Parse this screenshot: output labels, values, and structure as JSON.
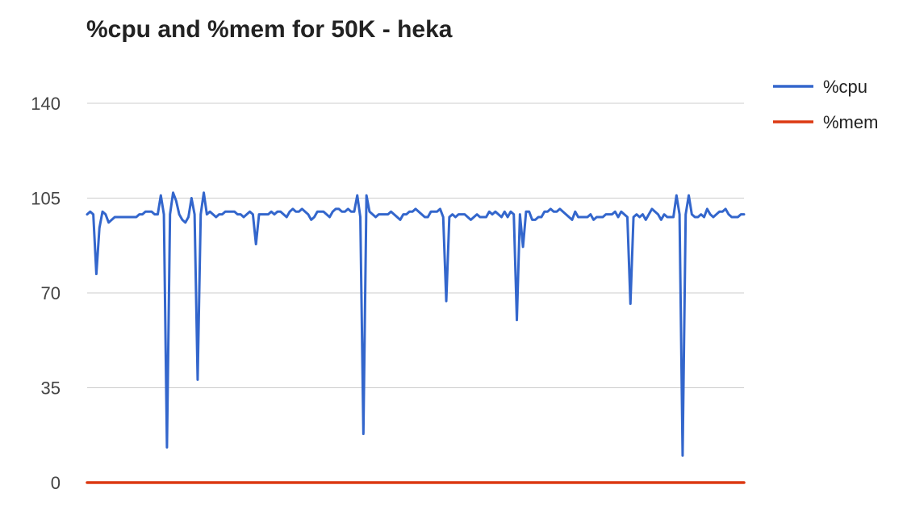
{
  "chart_data": {
    "type": "line",
    "title": "%cpu and %mem for 50K - heka",
    "xlabel": "",
    "ylabel": "",
    "ylim": [
      0,
      140
    ],
    "yticks": [
      "0",
      "35",
      "70",
      "105",
      "140"
    ],
    "grid": true,
    "legend": "top-right",
    "series": [
      {
        "name": "%cpu",
        "color": "#3366cc",
        "values": [
          99,
          100,
          99,
          77,
          94,
          100,
          99,
          96,
          97,
          98,
          98,
          98,
          98,
          98,
          98,
          98,
          98,
          99,
          99,
          100,
          100,
          100,
          99,
          99,
          106,
          99,
          13,
          99,
          107,
          104,
          99,
          97,
          96,
          98,
          105,
          99,
          38,
          99,
          107,
          99,
          100,
          99,
          98,
          99,
          99,
          100,
          100,
          100,
          100,
          99,
          99,
          98,
          99,
          100,
          99,
          88,
          99,
          99,
          99,
          99,
          100,
          99,
          100,
          100,
          99,
          98,
          100,
          101,
          100,
          100,
          101,
          100,
          99,
          97,
          98,
          100,
          100,
          100,
          99,
          98,
          100,
          101,
          101,
          100,
          100,
          101,
          100,
          100,
          106,
          98,
          18,
          106,
          100,
          99,
          98,
          99,
          99,
          99,
          99,
          100,
          99,
          98,
          97,
          99,
          99,
          100,
          100,
          101,
          100,
          99,
          98,
          98,
          100,
          100,
          100,
          101,
          98,
          67,
          98,
          99,
          98,
          99,
          99,
          99,
          98,
          97,
          98,
          99,
          98,
          98,
          98,
          100,
          99,
          100,
          99,
          98,
          100,
          98,
          100,
          99,
          60,
          99,
          87,
          100,
          100,
          97,
          97,
          98,
          98,
          100,
          100,
          101,
          100,
          100,
          101,
          100,
          99,
          98,
          97,
          100,
          98,
          98,
          98,
          98,
          99,
          97,
          98,
          98,
          98,
          99,
          99,
          99,
          100,
          98,
          100,
          99,
          98,
          66,
          98,
          99,
          98,
          99,
          97,
          99,
          101,
          100,
          99,
          97,
          99,
          98,
          98,
          98,
          106,
          99,
          10,
          99,
          106,
          99,
          98,
          98,
          99,
          98,
          101,
          99,
          98,
          99,
          100,
          100,
          101,
          99,
          98,
          98,
          98,
          99,
          99
        ]
      },
      {
        "name": "%mem",
        "color": "#dc3912",
        "values": [
          0,
          0,
          0,
          0,
          0,
          0,
          0,
          0,
          0,
          0,
          0,
          0,
          0,
          0,
          0,
          0,
          0,
          0,
          0,
          0,
          0,
          0,
          0,
          0,
          0,
          0,
          0,
          0,
          0,
          0,
          0,
          0,
          0,
          0,
          0,
          0,
          0,
          0,
          0,
          0,
          0,
          0,
          0,
          0,
          0,
          0,
          0,
          0,
          0,
          0,
          0,
          0,
          0,
          0,
          0,
          0,
          0,
          0,
          0,
          0,
          0,
          0,
          0,
          0,
          0,
          0,
          0,
          0,
          0,
          0,
          0,
          0,
          0,
          0,
          0,
          0,
          0,
          0,
          0,
          0,
          0,
          0,
          0,
          0,
          0,
          0,
          0,
          0,
          0,
          0,
          0,
          0,
          0,
          0,
          0,
          0,
          0,
          0,
          0,
          0,
          0,
          0,
          0,
          0,
          0,
          0,
          0,
          0,
          0,
          0,
          0,
          0,
          0,
          0,
          0,
          0,
          0,
          0,
          0,
          0,
          0,
          0,
          0,
          0,
          0,
          0,
          0,
          0,
          0,
          0,
          0,
          0,
          0,
          0,
          0,
          0,
          0,
          0,
          0,
          0,
          0,
          0,
          0,
          0,
          0,
          0,
          0,
          0,
          0,
          0,
          0,
          0,
          0,
          0,
          0,
          0,
          0,
          0,
          0,
          0,
          0,
          0,
          0,
          0,
          0,
          0,
          0,
          0,
          0,
          0,
          0,
          0,
          0,
          0,
          0,
          0,
          0,
          0,
          0,
          0,
          0,
          0,
          0,
          0,
          0,
          0,
          0,
          0,
          0,
          0,
          0,
          0,
          0,
          0,
          0,
          0,
          0,
          0,
          0,
          0,
          0,
          0,
          0,
          0,
          0,
          0,
          0,
          0,
          0,
          0,
          0,
          0,
          0,
          0,
          0,
          0,
          0,
          0,
          0,
          0,
          0,
          0,
          0
        ]
      }
    ]
  }
}
